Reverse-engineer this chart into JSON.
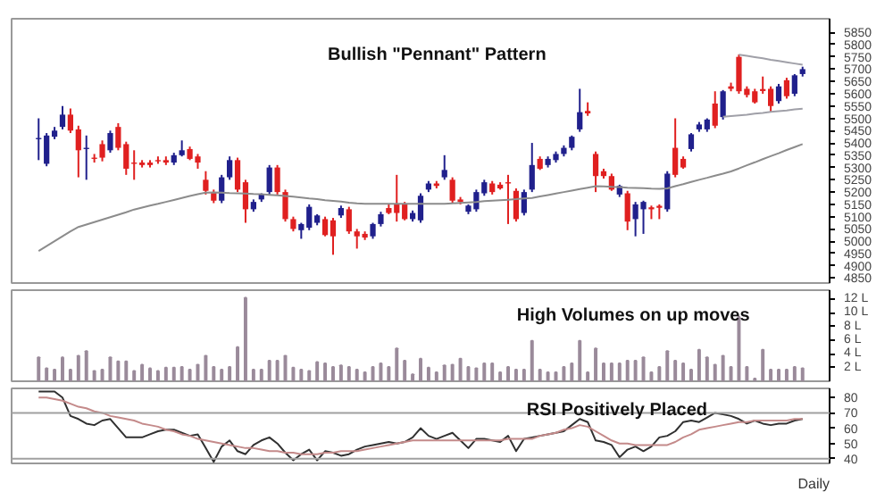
{
  "chart_data": [
    {
      "type": "candlestick",
      "title": "Bullish \"Pennant\" Pattern",
      "tick_labels": "y",
      "ylim": [
        4830,
        5905
      ],
      "yticks": [
        4850,
        4900,
        4950,
        5000,
        5050,
        5100,
        5150,
        5200,
        5250,
        5300,
        5350,
        5400,
        5450,
        5500,
        5550,
        5600,
        5650,
        5700,
        5750,
        5800,
        5850
      ],
      "categories": [
        null,
        null,
        null,
        null,
        null,
        null,
        null,
        null,
        null,
        null,
        null,
        null,
        null,
        null,
        null,
        null,
        null,
        null,
        null,
        null,
        null,
        null,
        null,
        null,
        null,
        null,
        null,
        null,
        null,
        null,
        null,
        null,
        null,
        null,
        null,
        null,
        null,
        null,
        null,
        null,
        null,
        null,
        null,
        null,
        null,
        null,
        null,
        null,
        null,
        null,
        null,
        null,
        null,
        null,
        null,
        null,
        null,
        null,
        null,
        null,
        null,
        null,
        null,
        null,
        null,
        null,
        null,
        null,
        null,
        null,
        null,
        null,
        null,
        null,
        null,
        null,
        null,
        null,
        null,
        null,
        null,
        null,
        null,
        null,
        null,
        null,
        null,
        null,
        null,
        null,
        null,
        null,
        null,
        null,
        null,
        null,
        null
      ],
      "ohlc": [
        [
          5420,
          5500,
          5330,
          5415
        ],
        [
          5315,
          5440,
          5305,
          5430
        ],
        [
          5425,
          5465,
          5415,
          5450
        ],
        [
          5465,
          5550,
          5455,
          5515
        ],
        [
          5515,
          5540,
          5440,
          5450
        ],
        [
          5455,
          5470,
          5260,
          5370
        ],
        [
          5380,
          5430,
          5250,
          5375
        ],
        [
          5340,
          5355,
          5320,
          5335
        ],
        [
          5395,
          5410,
          5325,
          5340
        ],
        [
          5370,
          5450,
          5360,
          5440
        ],
        [
          5465,
          5480,
          5370,
          5380
        ],
        [
          5395,
          5405,
          5270,
          5295
        ],
        [
          5320,
          5370,
          5250,
          5315
        ],
        [
          5320,
          5330,
          5300,
          5310
        ],
        [
          5320,
          5330,
          5300,
          5310
        ],
        [
          5330,
          5345,
          5315,
          5325
        ],
        [
          5330,
          5345,
          5310,
          5320
        ],
        [
          5320,
          5360,
          5310,
          5350
        ],
        [
          5350,
          5410,
          5345,
          5370
        ],
        [
          5375,
          5385,
          5330,
          5335
        ],
        [
          5345,
          5355,
          5295,
          5320
        ],
        [
          5250,
          5285,
          5190,
          5205
        ],
        [
          5200,
          5210,
          5155,
          5165
        ],
        [
          5165,
          5270,
          5155,
          5260
        ],
        [
          5260,
          5345,
          5250,
          5330
        ],
        [
          5330,
          5340,
          5200,
          5210
        ],
        [
          5240,
          5250,
          5075,
          5130
        ],
        [
          5130,
          5170,
          5120,
          5160
        ],
        [
          5170,
          5195,
          5160,
          5190
        ],
        [
          5200,
          5310,
          5190,
          5300
        ],
        [
          5300,
          5310,
          5190,
          5200
        ],
        [
          5200,
          5210,
          5080,
          5090
        ],
        [
          5090,
          5100,
          5040,
          5050
        ],
        [
          5045,
          5075,
          5010,
          5070
        ],
        [
          5055,
          5150,
          5045,
          5140
        ],
        [
          5075,
          5110,
          5065,
          5105
        ],
        [
          5090,
          5100,
          5020,
          5025
        ],
        [
          5085,
          5095,
          4945,
          5020
        ],
        [
          5105,
          5145,
          5095,
          5135
        ],
        [
          5130,
          5140,
          5030,
          5040
        ],
        [
          5040,
          5050,
          4970,
          5020
        ],
        [
          5030,
          5040,
          5005,
          5015
        ],
        [
          5020,
          5075,
          5010,
          5070
        ],
        [
          5070,
          5120,
          5060,
          5110
        ],
        [
          5135,
          5150,
          5110,
          5115
        ],
        [
          5150,
          5270,
          5080,
          5115
        ],
        [
          5150,
          5160,
          5085,
          5090
        ],
        [
          5090,
          5125,
          5080,
          5115
        ],
        [
          5085,
          5195,
          5075,
          5185
        ],
        [
          5210,
          5245,
          5200,
          5235
        ],
        [
          5235,
          5245,
          5215,
          5225
        ],
        [
          5260,
          5350,
          5250,
          5290
        ],
        [
          5250,
          5260,
          5155,
          5165
        ],
        [
          5170,
          5180,
          5150,
          5160
        ],
        [
          5120,
          5150,
          5110,
          5145
        ],
        [
          5130,
          5210,
          5120,
          5200
        ],
        [
          5195,
          5250,
          5185,
          5240
        ],
        [
          5235,
          5245,
          5190,
          5200
        ],
        [
          5230,
          5240,
          5210,
          5215
        ],
        [
          5240,
          5270,
          5070,
          5235
        ],
        [
          5205,
          5215,
          5080,
          5090
        ],
        [
          5115,
          5210,
          5105,
          5200
        ],
        [
          5210,
          5400,
          5200,
          5310
        ],
        [
          5335,
          5345,
          5290,
          5295
        ],
        [
          5310,
          5345,
          5300,
          5335
        ],
        [
          5330,
          5365,
          5320,
          5355
        ],
        [
          5355,
          5390,
          5345,
          5380
        ],
        [
          5380,
          5430,
          5370,
          5425
        ],
        [
          5455,
          5620,
          5445,
          5525
        ],
        [
          5530,
          5565,
          5510,
          5520
        ],
        [
          5355,
          5365,
          5200,
          5265
        ],
        [
          5285,
          5295,
          5255,
          5265
        ],
        [
          5265,
          5275,
          5205,
          5210
        ],
        [
          5190,
          5230,
          5180,
          5225
        ],
        [
          5195,
          5205,
          5045,
          5080
        ],
        [
          5090,
          5160,
          5020,
          5150
        ],
        [
          5130,
          5165,
          5030,
          5160
        ],
        [
          5138,
          5145,
          5090,
          5130
        ],
        [
          5144,
          5150,
          5090,
          5136
        ],
        [
          5130,
          5285,
          5120,
          5275
        ],
        [
          5380,
          5500,
          5260,
          5270
        ],
        [
          5335,
          5345,
          5295,
          5300
        ],
        [
          5375,
          5440,
          5365,
          5435
        ],
        [
          5455,
          5485,
          5445,
          5475
        ],
        [
          5455,
          5500,
          5445,
          5495
        ],
        [
          5560,
          5610,
          5460,
          5470
        ],
        [
          5505,
          5615,
          5495,
          5610
        ],
        [
          5630,
          5645,
          5610,
          5620
        ],
        [
          5750,
          5760,
          5600,
          5610
        ],
        [
          5620,
          5630,
          5585,
          5595
        ],
        [
          5610,
          5620,
          5560,
          5565
        ],
        [
          5619,
          5670,
          5600,
          5611
        ],
        [
          5620,
          5630,
          5525,
          5550
        ],
        [
          5570,
          5640,
          5560,
          5630
        ],
        [
          5655,
          5665,
          5580,
          5590
        ],
        [
          5600,
          5680,
          5590,
          5675
        ],
        [
          5680,
          5710,
          5670,
          5700
        ]
      ],
      "colors": [
        "#20208c",
        "#20208c",
        "#20208c",
        "#20208c",
        "#e02020",
        "#e02020",
        "#20208c",
        "#e02020",
        "#e02020",
        "#20208c",
        "#e02020",
        "#e02020",
        "#e02020",
        "#e02020",
        "#e02020",
        "#e02020",
        "#e02020",
        "#20208c",
        "#20208c",
        "#e02020",
        "#e02020",
        "#e02020",
        "#e02020",
        "#20208c",
        "#20208c",
        "#e02020",
        "#e02020",
        "#20208c",
        "#20208c",
        "#20208c",
        "#e02020",
        "#e02020",
        "#e02020",
        "#20208c",
        "#20208c",
        "#20208c",
        "#e02020",
        "#e02020",
        "#20208c",
        "#e02020",
        "#e02020",
        "#e02020",
        "#20208c",
        "#20208c",
        "#e02020",
        "#e02020",
        "#e02020",
        "#20208c",
        "#20208c",
        "#20208c",
        "#e02020",
        "#20208c",
        "#e02020",
        "#e02020",
        "#20208c",
        "#20208c",
        "#20208c",
        "#e02020",
        "#e02020",
        "#e02020",
        "#e02020",
        "#20208c",
        "#20208c",
        "#e02020",
        "#20208c",
        "#20208c",
        "#20208c",
        "#20208c",
        "#20208c",
        "#e02020",
        "#e02020",
        "#e02020",
        "#e02020",
        "#20208c",
        "#e02020",
        "#20208c",
        "#20208c",
        "#e02020",
        "#e02020",
        "#20208c",
        "#e02020",
        "#e02020",
        "#20208c",
        "#20208c",
        "#20208c",
        "#e02020",
        "#20208c",
        "#e02020",
        "#e02020",
        "#e02020",
        "#e02020",
        "#e02020",
        "#e02020",
        "#20208c",
        "#e02020",
        "#20208c",
        "#20208c"
      ],
      "series": [
        {
          "type": "line",
          "color": "#8c8c8c",
          "values": [
            4960,
            4980,
            5000,
            5020,
            5040,
            5058,
            5068,
            5078,
            5088,
            5098,
            5108,
            5118,
            5129,
            5137,
            5145,
            5152,
            5160,
            5168,
            5176,
            5184,
            5191,
            5198,
            5199,
            5198,
            5196,
            5195,
            5194,
            5192,
            5191,
            5189,
            5187,
            5184,
            5181,
            5178,
            5174,
            5171,
            5167,
            5164,
            5161,
            5157,
            5154,
            5152,
            5152,
            5152,
            5152,
            5152,
            5152,
            5152,
            5152,
            5152,
            5152,
            5152,
            5154,
            5156,
            5158,
            5160,
            5163,
            5165,
            5167,
            5169,
            5171,
            5174,
            5176,
            5182,
            5188,
            5194,
            5200,
            5206,
            5212,
            5218,
            5224,
            5223,
            5221,
            5220,
            5218,
            5217,
            5216,
            5214,
            5213,
            5215,
            5224,
            5232,
            5241,
            5250,
            5258,
            5267,
            5275,
            5284,
            5296,
            5309,
            5321,
            5334,
            5346,
            5358,
            5371,
            5383,
            5395
          ]
        },
        {
          "type": "line",
          "color": "#a0a0a8",
          "values": [
            null,
            null,
            null,
            null,
            null,
            null,
            null,
            null,
            null,
            null,
            null,
            null,
            null,
            null,
            null,
            null,
            null,
            null,
            null,
            null,
            null,
            null,
            null,
            null,
            null,
            null,
            null,
            null,
            null,
            null,
            null,
            null,
            null,
            null,
            null,
            null,
            null,
            null,
            null,
            null,
            null,
            null,
            null,
            null,
            null,
            null,
            null,
            null,
            null,
            null,
            null,
            null,
            null,
            null,
            null,
            null,
            null,
            null,
            null,
            null,
            null,
            null,
            null,
            null,
            null,
            null,
            null,
            null,
            null,
            null,
            null,
            null,
            null,
            null,
            null,
            null,
            null,
            null,
            null,
            null,
            null,
            null,
            null,
            null,
            null,
            null,
            null,
            null,
            5759,
            5754,
            5749,
            5744,
            5738,
            5733,
            5728,
            5723,
            5718
          ]
        },
        {
          "type": "line",
          "color": "#a0a0a8",
          "values": [
            null,
            null,
            null,
            null,
            null,
            null,
            null,
            null,
            null,
            null,
            null,
            null,
            null,
            null,
            null,
            null,
            null,
            null,
            null,
            null,
            null,
            null,
            null,
            null,
            null,
            null,
            null,
            null,
            null,
            null,
            null,
            null,
            null,
            null,
            null,
            null,
            null,
            null,
            null,
            null,
            null,
            null,
            null,
            null,
            null,
            null,
            null,
            null,
            null,
            null,
            null,
            null,
            null,
            null,
            null,
            null,
            null,
            null,
            null,
            null,
            null,
            null,
            null,
            null,
            null,
            null,
            null,
            null,
            null,
            null,
            null,
            null,
            null,
            null,
            null,
            null,
            null,
            null,
            null,
            null,
            null,
            null,
            null,
            null,
            null,
            null,
            5506,
            5509,
            5512,
            5515,
            5519,
            5522,
            5526,
            5529,
            5532,
            5536,
            5539
          ]
        }
      ]
    },
    {
      "type": "bar",
      "title": "High Volumes on up moves",
      "tick_labels": "y",
      "ylim": [
        0,
        13.3
      ],
      "color": "#9a8a9a",
      "yticks": [
        {
          "value": 2,
          "label": "2 L"
        },
        {
          "value": 4,
          "label": "4 L"
        },
        {
          "value": 6,
          "label": "6 L"
        },
        {
          "value": 8,
          "label": "8 L"
        },
        {
          "value": 10,
          "label": "10 L"
        },
        {
          "value": 12,
          "label": "12 L"
        }
      ],
      "categories": [
        null,
        null,
        null,
        null,
        null,
        null,
        null,
        null,
        null,
        null,
        null,
        null,
        null,
        null,
        null,
        null,
        null,
        null,
        null,
        null,
        null,
        null,
        null,
        null,
        null,
        null,
        null,
        null,
        null,
        null,
        null,
        null,
        null,
        null,
        null,
        null,
        null,
        null,
        null,
        null,
        null,
        null,
        null,
        null,
        null,
        null,
        null,
        null,
        null,
        null,
        null,
        null,
        null,
        null,
        null,
        null,
        null,
        null,
        null,
        null,
        null,
        null,
        null,
        null,
        null,
        null,
        null,
        null,
        null,
        null,
        null,
        null,
        null,
        null,
        null,
        null,
        null,
        null,
        null,
        null,
        null,
        null,
        null,
        null,
        null,
        null,
        null,
        null,
        null,
        null,
        null,
        null,
        null,
        null,
        null,
        null,
        null
      ],
      "values": [
        3.5,
        1.9,
        1.7,
        3.5,
        1.7,
        3.7,
        4.4,
        1.5,
        1.7,
        3.5,
        2.9,
        2.9,
        1.5,
        2.4,
        1.9,
        1.5,
        2.0,
        2.0,
        2.1,
        1.7,
        2.4,
        3.7,
        2.1,
        1.7,
        2.1,
        5.0,
        12.2,
        1.7,
        1.7,
        3.0,
        3.0,
        3.7,
        2.0,
        1.7,
        1.5,
        2.8,
        2.6,
        2.1,
        2.3,
        2.1,
        1.7,
        1.3,
        2.1,
        2.6,
        2.1,
        4.8,
        3.0,
        1.0,
        3.3,
        2.0,
        1.3,
        2.3,
        2.4,
        3.3,
        2.1,
        1.9,
        2.6,
        2.6,
        1.3,
        2.1,
        1.7,
        1.7,
        5.9,
        1.7,
        1.3,
        1.3,
        2.1,
        2.6,
        5.9,
        1.3,
        4.8,
        2.6,
        2.6,
        2.6,
        3.0,
        3.0,
        3.5,
        1.3,
        2.1,
        4.4,
        3.0,
        2.6,
        1.7,
        4.6,
        3.5,
        2.4,
        3.7,
        2.1,
        9.4,
        2.1,
        0.4,
        4.6,
        1.7,
        1.7,
        1.7,
        2.1,
        1.9
      ]
    },
    {
      "type": "line",
      "title": "RSI Positively Placed",
      "tick_labels": "y",
      "ylim": [
        37,
        86
      ],
      "yticks": [
        40,
        50,
        60,
        70,
        80
      ],
      "ref_lines": [
        {
          "axis": "y",
          "value": 70,
          "color": "#a0a0a0"
        },
        {
          "axis": "y",
          "value": 40,
          "color": "#a0a0a0"
        }
      ],
      "annotations": [
        "Daily"
      ],
      "categories": [
        null,
        null,
        null,
        null,
        null,
        null,
        null,
        null,
        null,
        null,
        null,
        null,
        null,
        null,
        null,
        null,
        null,
        null,
        null,
        null,
        null,
        null,
        null,
        null,
        null,
        null,
        null,
        null,
        null,
        null,
        null,
        null,
        null,
        null,
        null,
        null,
        null,
        null,
        null,
        null,
        null,
        null,
        null,
        null,
        null,
        null,
        null,
        null,
        null,
        null,
        null,
        null,
        null,
        null,
        null,
        null,
        null,
        null,
        null,
        null,
        null,
        null,
        null,
        null,
        null,
        null,
        null,
        null,
        null,
        null,
        null,
        null,
        null,
        null,
        null,
        null,
        null,
        null,
        null,
        null,
        null,
        null,
        null,
        null,
        null,
        null,
        null,
        null,
        null,
        null,
        null,
        null,
        null,
        null,
        null,
        null,
        null
      ],
      "series": [
        {
          "color": "#303030",
          "values": [
            84,
            84,
            84,
            80,
            68,
            66,
            63,
            62,
            65,
            66,
            60,
            54,
            54,
            54,
            56,
            58,
            59,
            59,
            57,
            55,
            56,
            47,
            38,
            48,
            52,
            45,
            43,
            49,
            52,
            54,
            50,
            44,
            39,
            43,
            46,
            39,
            45,
            44,
            42,
            43,
            46,
            48,
            49,
            50,
            51,
            50,
            51,
            54,
            60,
            55,
            53,
            55,
            57,
            52,
            47,
            53,
            53,
            52,
            51,
            55,
            45,
            53,
            54,
            55,
            56,
            57,
            58,
            62,
            66,
            64,
            52,
            51,
            49,
            41,
            46,
            48,
            45,
            48,
            54,
            55,
            58,
            64,
            65,
            64,
            67,
            70,
            69,
            68,
            66,
            63,
            65,
            63,
            62,
            63,
            63,
            65,
            66
          ]
        },
        {
          "color": "#c48a8a",
          "values": [
            80,
            80,
            79,
            78,
            76,
            74,
            73,
            71,
            70,
            68,
            67,
            66,
            65,
            63,
            62,
            61,
            59,
            58,
            56,
            55,
            53,
            52,
            51,
            50,
            49,
            48,
            47,
            47,
            46,
            45,
            45,
            44,
            44,
            43,
            43,
            43,
            44,
            44,
            45,
            45,
            45,
            46,
            47,
            48,
            49,
            50,
            51,
            52,
            52,
            52,
            52,
            52,
            52,
            52,
            52,
            52,
            52,
            52,
            52,
            53,
            53,
            53,
            53,
            55,
            56,
            57,
            59,
            60,
            62,
            61,
            58,
            55,
            52,
            50,
            50,
            49,
            49,
            49,
            49,
            49,
            51,
            54,
            56,
            59,
            60,
            61,
            62,
            63,
            64,
            64,
            65,
            65,
            65,
            65,
            65,
            66,
            66
          ]
        }
      ]
    }
  ]
}
